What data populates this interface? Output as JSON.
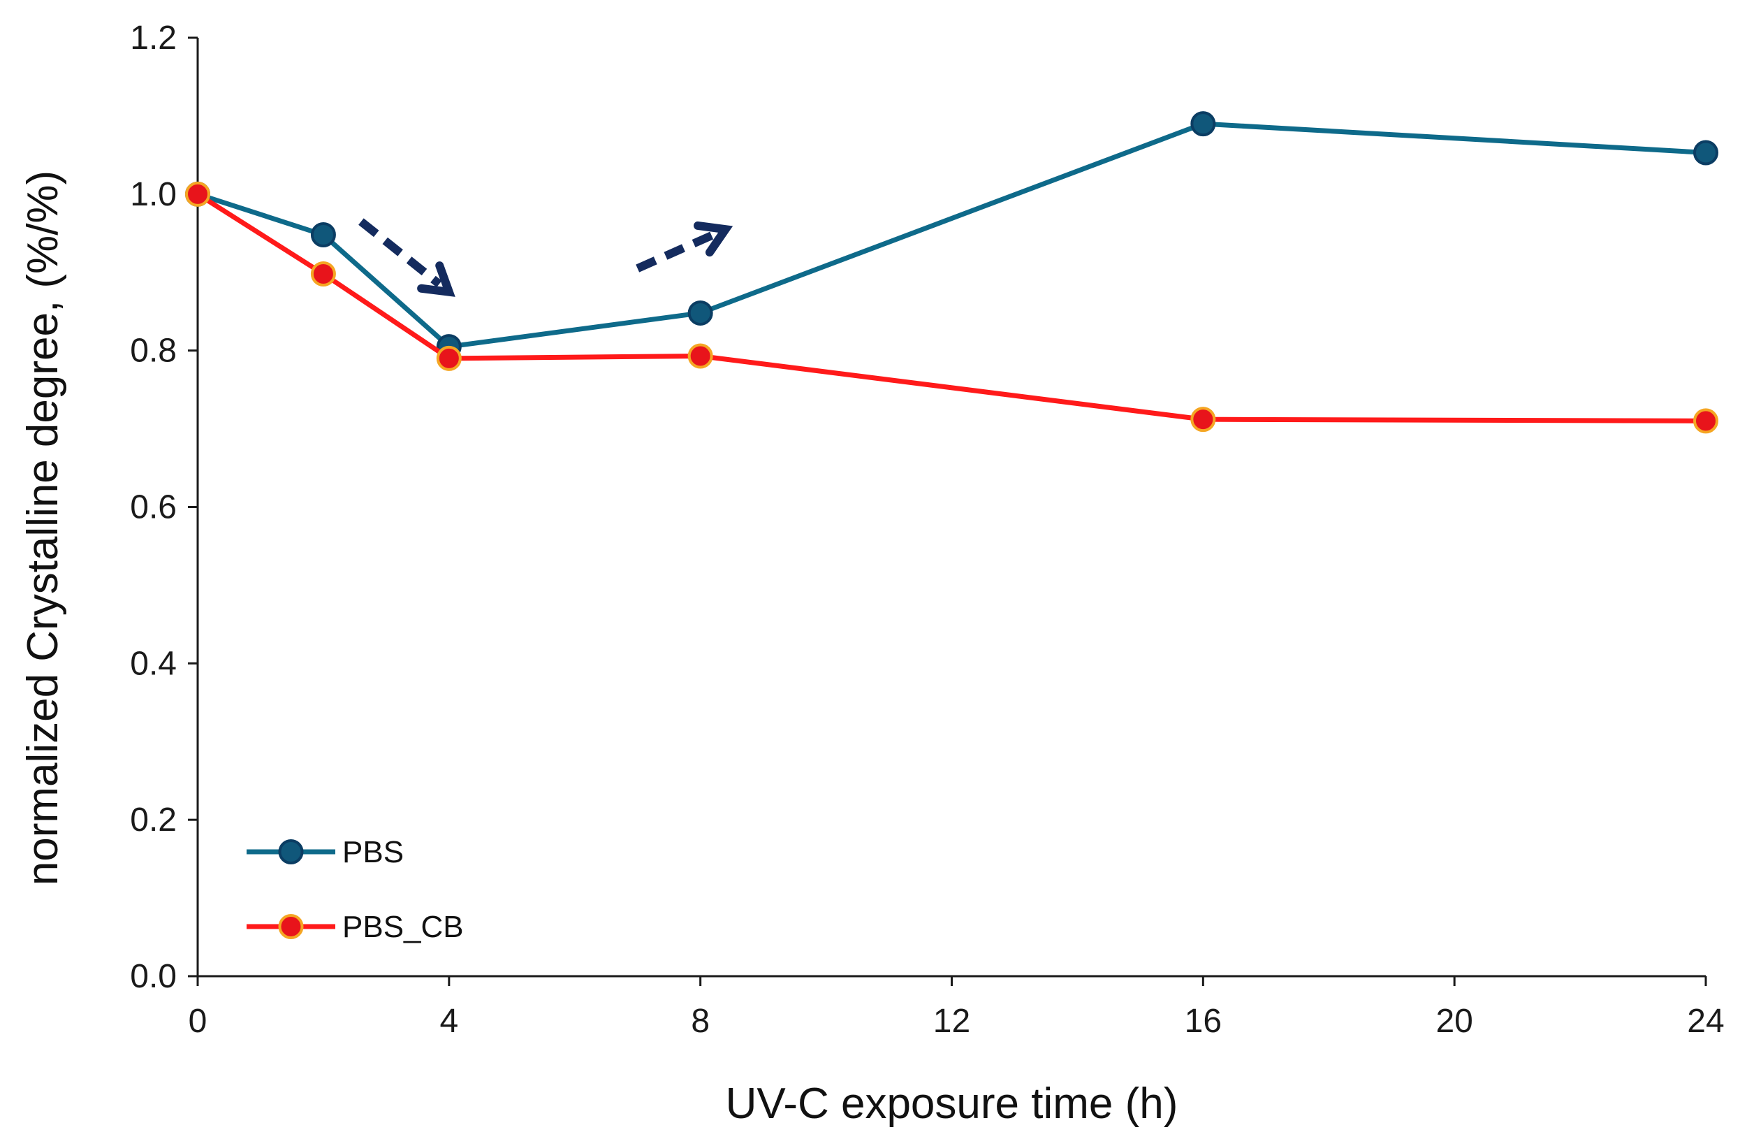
{
  "chart_data": {
    "type": "line",
    "title": "",
    "xlabel": "UV-C exposure time (h)",
    "ylabel": "normalized Crystalline degree, (%/%)",
    "xlim": [
      0,
      24
    ],
    "ylim": [
      0,
      1.2
    ],
    "xticks": [
      0,
      4,
      8,
      12,
      16,
      20,
      24
    ],
    "yticks": [
      0.0,
      0.2,
      0.4,
      0.6,
      0.8,
      1.0,
      1.2
    ],
    "xtick_labels": [
      "0",
      "4",
      "8",
      "12",
      "16",
      "20",
      "24"
    ],
    "ytick_labels": [
      "0.0",
      "0.2",
      "0.4",
      "0.6",
      "0.8",
      "1.0",
      "1.2"
    ],
    "grid": false,
    "legend_position": "bottom-left",
    "series": [
      {
        "name": "PBS",
        "line_color": "#0e6a8a",
        "marker_fill": "#10577a",
        "marker_edge": "#0b3d63",
        "x": [
          0,
          2,
          4,
          8,
          16,
          24
        ],
        "y": [
          1.0,
          0.948,
          0.805,
          0.848,
          1.09,
          1.053
        ]
      },
      {
        "name": "PBS_CB",
        "line_color": "#ff1a1a",
        "marker_fill": "#e8141b",
        "marker_edge": "#f5a623",
        "x": [
          0,
          2,
          4,
          8,
          16,
          24
        ],
        "y": [
          1.0,
          0.898,
          0.79,
          0.793,
          0.712,
          0.71
        ]
      }
    ],
    "annotations": [
      {
        "type": "dashed-arrow",
        "color": "#142b5e",
        "meaning": "decrease",
        "from": [
          2.6,
          0.965
        ],
        "to": [
          4.0,
          0.875
        ]
      },
      {
        "type": "dashed-arrow",
        "color": "#142b5e",
        "meaning": "increase",
        "from": [
          7.0,
          0.905
        ],
        "to": [
          8.4,
          0.955
        ]
      }
    ]
  }
}
